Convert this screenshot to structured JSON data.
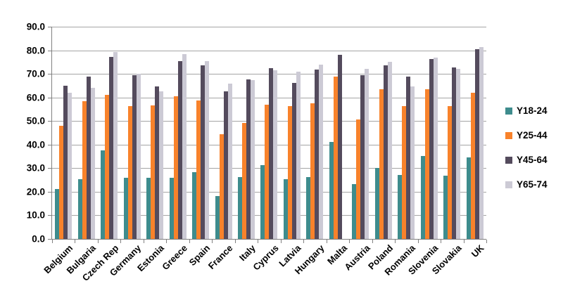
{
  "chart_data": {
    "type": "bar",
    "title": "",
    "xlabel": "",
    "ylabel": "",
    "categories": [
      "Belgium",
      "Bulgaria",
      "Czech Rep",
      "Germany",
      "Estonia",
      "Greece",
      "Spain",
      "France",
      "Italy",
      "Cyprus",
      "Latvia",
      "Hungary",
      "Malta",
      "Austria",
      "Poland",
      "Romania",
      "Slovenia",
      "Slovakia",
      "UK"
    ],
    "series": [
      {
        "name": "Y18-24",
        "color": "#3E8C8D",
        "values": [
          21.2,
          25.3,
          37.5,
          25.8,
          25.8,
          25.8,
          28.3,
          18.3,
          26.2,
          31.2,
          25.3,
          26.2,
          41.0,
          23.2,
          30.2,
          27.2,
          35.2,
          26.8,
          34.5
        ]
      },
      {
        "name": "Y25-44",
        "color": "#F8822B",
        "values": [
          48.0,
          58.5,
          61.0,
          56.4,
          56.5,
          60.5,
          58.6,
          44.3,
          49.2,
          57.0,
          56.3,
          57.4,
          68.8,
          50.6,
          63.5,
          56.3,
          63.5,
          56.3,
          62.0
        ]
      },
      {
        "name": "Y45-64",
        "color": "#544B5D",
        "values": [
          65.0,
          68.9,
          77.3,
          69.5,
          64.7,
          75.5,
          73.5,
          62.5,
          67.8,
          72.3,
          66.2,
          71.8,
          78.2,
          69.5,
          73.5,
          68.8,
          76.2,
          72.8,
          80.5
        ]
      },
      {
        "name": "Y65-74",
        "color": "#CCCAD5",
        "values": [
          62.0,
          64.2,
          79.4,
          70.0,
          62.5,
          78.5,
          75.5,
          66.0,
          67.5,
          71.5,
          70.8,
          74.0,
          null,
          72.2,
          75.0,
          64.8,
          77.0,
          72.2,
          81.5
        ]
      }
    ],
    "ylim": [
      0,
      90
    ],
    "ytick_step": 10,
    "ytick_labels_top_down": [
      "90.0",
      "80.0",
      "70.0",
      "60.0",
      "50.0",
      "40.0",
      "30.0",
      "20.0",
      "10.0",
      "0.0"
    ],
    "grid": true,
    "legend_position": "right",
    "legend_labels": [
      "Y18-24",
      "Y25-44",
      "Y45-64",
      "Y65-74"
    ]
  },
  "colors": {
    "background": "#FFFFFF",
    "gridline": "#A5A5A5",
    "axis": "#808080",
    "text": "#000000"
  }
}
